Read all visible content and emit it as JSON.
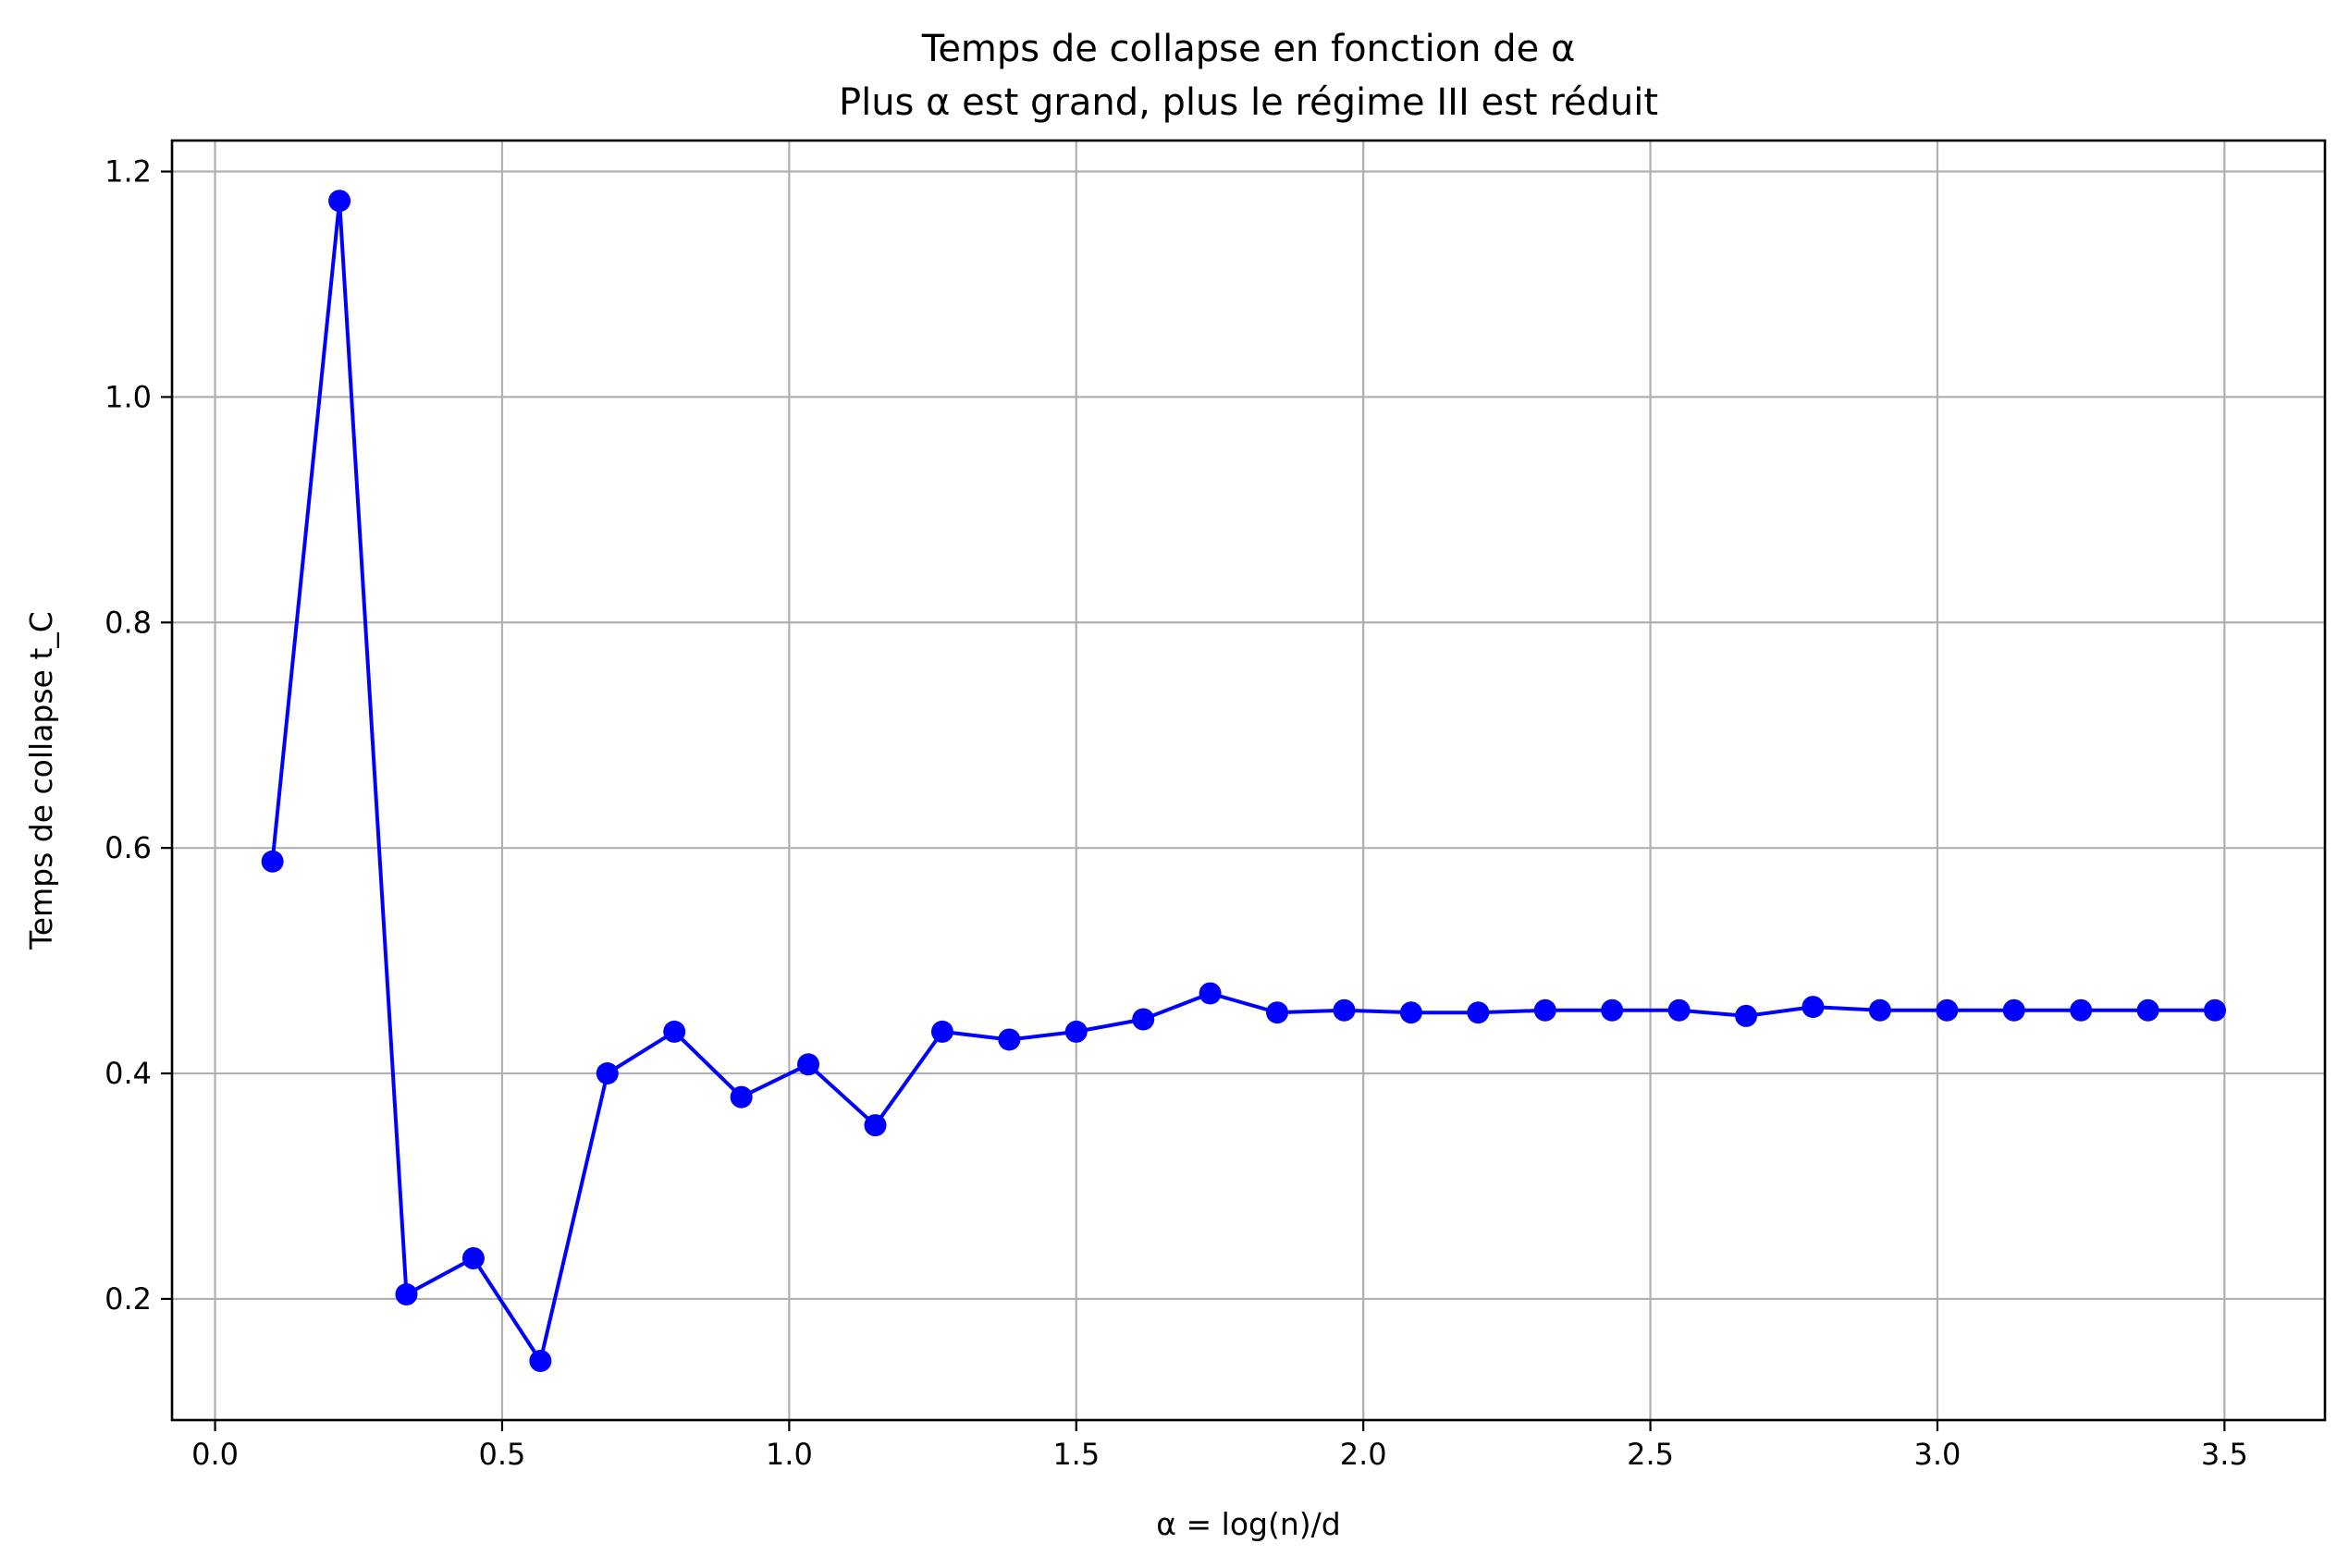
{
  "chart_data": {
    "type": "line",
    "title": "Temps de collapse en fonction de α",
    "subtitle": "Plus α est grand, plus le régime III est réduit",
    "xlabel": "α = log(n)/d",
    "ylabel": "Temps de collapse t_C",
    "xlim": [
      -0.075,
      3.675
    ],
    "ylim": [
      0.0925,
      1.2275
    ],
    "xticks": [
      "0.0",
      "0.5",
      "1.0",
      "1.5",
      "2.0",
      "2.5",
      "3.0",
      "3.5"
    ],
    "yticks": [
      "0.2",
      "0.4",
      "0.6",
      "0.8",
      "1.0",
      "1.2"
    ],
    "grid": true,
    "color": "#0000ff",
    "marker": "circle",
    "series": [
      {
        "x": [
          0.1,
          0.2167,
          0.3333,
          0.45,
          0.5667,
          0.6833,
          0.8,
          0.9167,
          1.0333,
          1.15,
          1.2667,
          1.3833,
          1.5,
          1.6167,
          1.7333,
          1.85,
          1.9667,
          2.0833,
          2.2,
          2.3167,
          2.4333,
          2.55,
          2.6667,
          2.7833,
          2.9,
          3.0167,
          3.1333,
          3.25,
          3.3667,
          3.4833
        ],
        "y": [
          0.588,
          1.174,
          0.204,
          0.236,
          0.145,
          0.4,
          0.437,
          0.379,
          0.408,
          0.354,
          0.437,
          0.43,
          0.437,
          0.448,
          0.471,
          0.454,
          0.456,
          0.454,
          0.454,
          0.456,
          0.456,
          0.456,
          0.451,
          0.459,
          0.456,
          0.456,
          0.456,
          0.456,
          0.456,
          0.456
        ]
      }
    ]
  }
}
